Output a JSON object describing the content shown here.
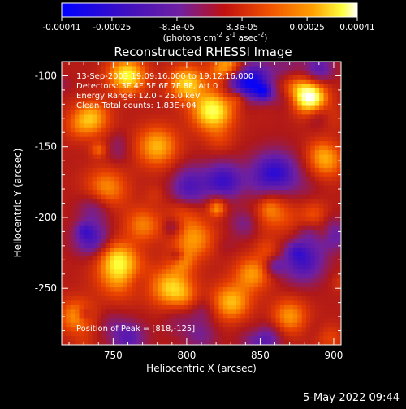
{
  "chart_data": {
    "type": "heatmap",
    "title": "Reconstructed RHESSI Image",
    "xlabel": "Heliocentric X (arcsec)",
    "ylabel": "Heliocentric Y (arcsec)",
    "xlim": [
      715,
      905
    ],
    "ylim": [
      -290,
      -90
    ],
    "xticks": [
      750,
      800,
      850,
      900
    ],
    "yticks": [
      -100,
      -150,
      -200,
      -250
    ],
    "colorbar": {
      "ticks": [
        "-0.00041",
        "-0.00025",
        "-8.3e-05",
        "8.3e-05",
        "0.00025",
        "0.00041"
      ],
      "tick_values": [
        -0.00041,
        -0.00025,
        -8.3e-05,
        8.3e-05,
        0.00025,
        0.00041
      ],
      "range": [
        -0.00041,
        0.00041
      ],
      "label": "(photons cm",
      "label_sup1": "-2",
      "label_mid": " s",
      "label_sup2": "-1",
      "label_end": " asec",
      "label_sup3": "-2",
      "label_close": ")"
    },
    "annotations": [
      "13-Sep-2003 19:09:16.000 to 19:12:16.000",
      "Detectors: 3F 4F 5F 6F 7F 8F, Att 0",
      "Energy Range: 12.0 - 25.0 keV",
      "Clean    Total counts: 1.83E+04"
    ],
    "peak_label": "Position of Peak = [818,-125]",
    "peak": [
      818,
      -125
    ],
    "colormap": [
      "#0000ff",
      "#4010c0",
      "#7020a0",
      "#b01818",
      "#e84000",
      "#ff9800",
      "#ffff30",
      "#ffffff"
    ]
  },
  "footer_timestamp": "5-May-2022 09:44"
}
